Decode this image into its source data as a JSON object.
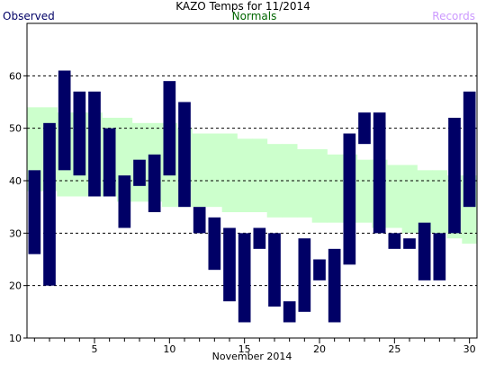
{
  "chart_data": {
    "type": "bar",
    "title": "KAZO Temps for  11/2014",
    "xlabel": "November 2014",
    "ylabel": "",
    "xlim": [
      0.5,
      30.5
    ],
    "ylim": [
      10,
      70
    ],
    "yticks": [
      10,
      20,
      30,
      40,
      50,
      60
    ],
    "xticks": [
      5,
      10,
      15,
      20,
      25,
      30
    ],
    "grid": true,
    "legend": [
      {
        "name": "Observed",
        "color": "#000066"
      },
      {
        "name": "Normals",
        "color": "#006600"
      },
      {
        "name": "Records",
        "color": "#cc99ff"
      }
    ],
    "normals": {
      "color": "#ccffcc",
      "days": [
        1,
        2,
        3,
        4,
        5,
        6,
        7,
        8,
        9,
        10,
        11,
        12,
        13,
        14,
        15,
        16,
        17,
        18,
        19,
        20,
        21,
        22,
        23,
        24,
        25,
        26,
        27,
        28,
        29,
        30
      ],
      "high": [
        54,
        54,
        53,
        53,
        53,
        52,
        52,
        51,
        51,
        51,
        50,
        49,
        49,
        49,
        48,
        48,
        47,
        47,
        46,
        46,
        45,
        45,
        44,
        44,
        43,
        43,
        42,
        42,
        41,
        41
      ],
      "low": [
        38,
        38,
        37,
        37,
        37,
        37,
        36,
        36,
        36,
        35,
        35,
        35,
        35,
        34,
        34,
        34,
        33,
        33,
        33,
        32,
        32,
        32,
        32,
        31,
        31,
        30,
        30,
        30,
        29,
        28
      ]
    },
    "series": [
      {
        "name": "Observed",
        "color": "#000066",
        "days": [
          1,
          2,
          3,
          4,
          5,
          6,
          7,
          8,
          9,
          10,
          11,
          12,
          13,
          14,
          15,
          16,
          17,
          18,
          19,
          20,
          21,
          22,
          23,
          24,
          25,
          26,
          27,
          28,
          29,
          30
        ],
        "high": [
          42,
          51,
          61,
          57,
          57,
          50,
          41,
          44,
          45,
          59,
          55,
          35,
          33,
          31,
          30,
          31,
          30,
          17,
          29,
          25,
          27,
          49,
          53,
          53,
          30,
          29,
          32,
          30,
          52,
          57
        ],
        "low": [
          26,
          20,
          42,
          41,
          37,
          37,
          31,
          39,
          34,
          41,
          35,
          30,
          23,
          17,
          13,
          27,
          16,
          13,
          15,
          21,
          13,
          24,
          47,
          30,
          27,
          27,
          21,
          21,
          30,
          35
        ]
      }
    ]
  }
}
